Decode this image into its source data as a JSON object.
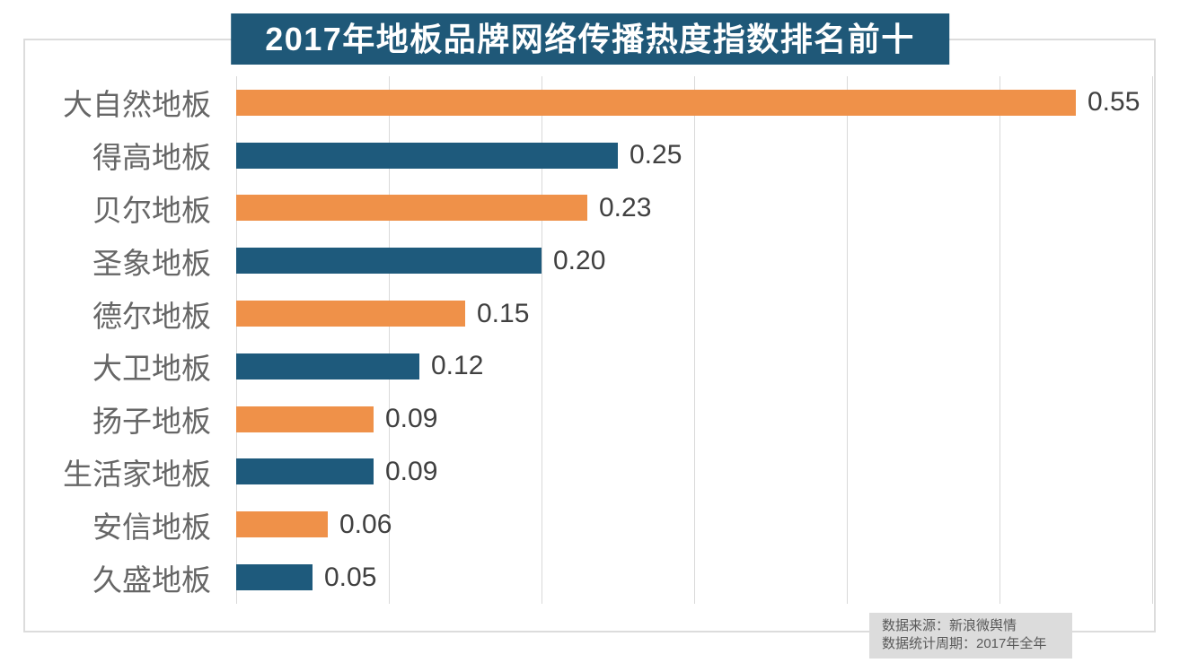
{
  "chart_data": {
    "type": "bar",
    "orientation": "horizontal",
    "title": "2017年地板品牌网络传播热度指数排名前十",
    "categories": [
      "大自然地板",
      "得高地板",
      "贝尔地板",
      "圣象地板",
      "德尔地板",
      "大卫地板",
      "扬子地板",
      "生活家地板",
      "安信地板",
      "久盛地板"
    ],
    "values": [
      0.55,
      0.25,
      0.23,
      0.2,
      0.15,
      0.12,
      0.09,
      0.09,
      0.06,
      0.05
    ],
    "value_labels": [
      "0.55",
      "0.25",
      "0.23",
      "0.20",
      "0.15",
      "0.12",
      "0.09",
      "0.09",
      "0.06",
      "0.05"
    ],
    "xlabel": "",
    "ylabel": "",
    "xlim": [
      0,
      0.6
    ],
    "gridline_step": 0.1,
    "grid": "vertical-only",
    "legend": "none",
    "bar_colors_alternating": [
      "#EF9149",
      "#1E5A7C"
    ]
  },
  "footer": {
    "line1": "数据来源：新浪微舆情",
    "line2": "数据统计周期：2017年全年"
  },
  "colors": {
    "title_bg": "#1F5878",
    "title_text": "#FFFFFF",
    "orange_bar": "#EF9149",
    "blue_bar": "#1E5A7C",
    "grid": "#D9D9D9",
    "frame": "#DCDCDC",
    "label_text": "#666666",
    "value_text": "#404040",
    "footer_bg": "#DCDCDC",
    "footer_text": "#595959"
  }
}
